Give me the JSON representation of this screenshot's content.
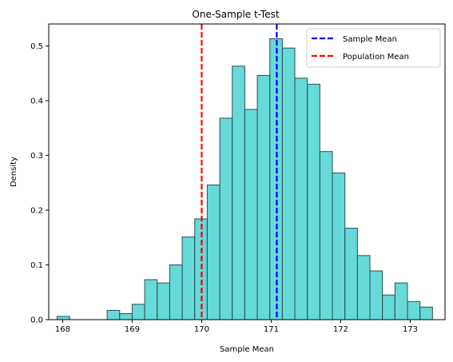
{
  "chart_data": {
    "type": "bar",
    "title": "One-Sample t-Test",
    "xlabel": "Sample Mean",
    "ylabel": "Density",
    "xlim": [
      167.8,
      173.5
    ],
    "ylim": [
      0,
      0.54
    ],
    "xticks": [
      168,
      169,
      170,
      171,
      172,
      173
    ],
    "xtick_labels": [
      "168",
      "169",
      "170",
      "171",
      "172",
      "173"
    ],
    "yticks": [
      0.0,
      0.1,
      0.2,
      0.3,
      0.4,
      0.5
    ],
    "ytick_labels": [
      "0.0",
      "0.1",
      "0.2",
      "0.3",
      "0.4",
      "0.5"
    ],
    "grid": false,
    "legend_position": "top-right",
    "histogram": {
      "bin_edges": [
        167.92,
        168.1,
        168.28,
        168.46,
        168.64,
        168.82,
        169.0,
        169.18,
        169.36,
        169.54,
        169.72,
        169.9,
        170.08,
        170.26,
        170.44,
        170.62,
        170.8,
        170.98,
        171.16,
        171.34,
        171.52,
        171.7,
        171.88,
        172.06,
        172.24,
        172.42,
        172.6,
        172.78,
        172.96,
        173.14,
        173.32
      ],
      "densities": [
        0.006,
        0.0,
        0.0,
        0.0,
        0.017,
        0.011,
        0.028,
        0.073,
        0.067,
        0.1,
        0.151,
        0.184,
        0.246,
        0.368,
        0.463,
        0.384,
        0.446,
        0.513,
        0.496,
        0.441,
        0.43,
        0.307,
        0.268,
        0.167,
        0.117,
        0.089,
        0.045,
        0.067,
        0.033,
        0.023
      ],
      "fill_color": "#40d0d0",
      "edge_color": "#2a5050"
    },
    "vlines": [
      {
        "name": "Sample Mean",
        "x": 171.08,
        "color": "#0000ff",
        "style": "dashed"
      },
      {
        "name": "Population Mean",
        "x": 170.0,
        "color": "#ff0000",
        "style": "dashed"
      }
    ]
  }
}
